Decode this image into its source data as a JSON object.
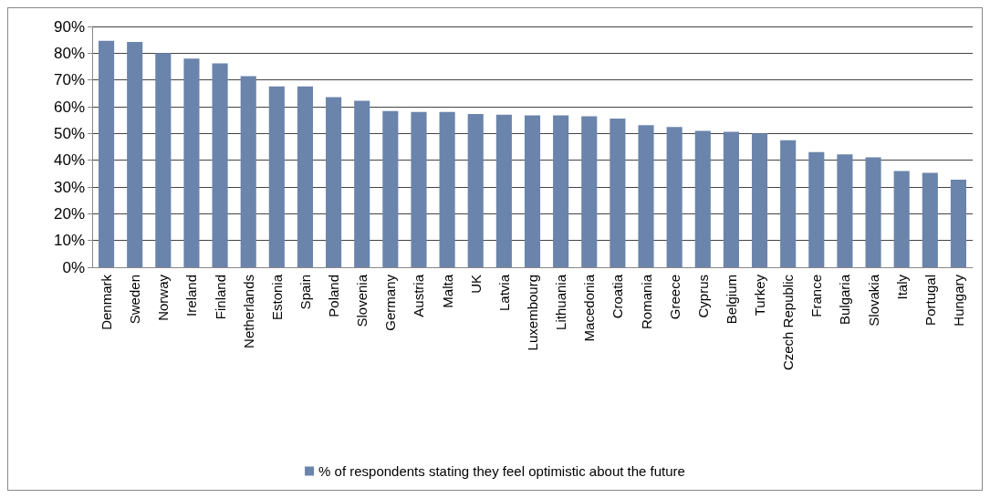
{
  "chart_data": {
    "type": "bar",
    "categories": [
      "Denmark",
      "Sweden",
      "Norway",
      "Ireland",
      "Finland",
      "Netherlands",
      "Estonia",
      "Spain",
      "Poland",
      "Slovenia",
      "Germany",
      "Austria",
      "Malta",
      "UK",
      "Latvia",
      "Luxembourg",
      "Lithuania",
      "Macedonia",
      "Croatia",
      "Romania",
      "Greece",
      "Cyprus",
      "Belgium",
      "Turkey",
      "Czech Republic",
      "France",
      "Bulgaria",
      "Slovakia",
      "Italy",
      "Portugal",
      "Hungary"
    ],
    "series": [
      {
        "name": "% of respondents stating they feel optimistic about the future",
        "color": "#6b84ab",
        "values": [
          84.6,
          84.2,
          80,
          78,
          76.2,
          71.4,
          67.6,
          67.6,
          63.6,
          62.2,
          58.4,
          58,
          58,
          57.3,
          57,
          56.8,
          56.8,
          56.4,
          55.6,
          53.1,
          52.4,
          51,
          50.6,
          50,
          47.5,
          43,
          42.2,
          41.1,
          36,
          35.3,
          32.7
        ]
      }
    ],
    "ylim": [
      0,
      90
    ],
    "yticks": [
      {
        "value": 0,
        "label": "0%"
      },
      {
        "value": 10,
        "label": "10%"
      },
      {
        "value": 20,
        "label": "20%"
      },
      {
        "value": 30,
        "label": "30%"
      },
      {
        "value": 40,
        "label": "40%"
      },
      {
        "value": 50,
        "label": "50%"
      },
      {
        "value": 60,
        "label": "60%"
      },
      {
        "value": 70,
        "label": "70%"
      },
      {
        "value": 80,
        "label": "80%"
      },
      {
        "value": 90,
        "label": "90%"
      }
    ],
    "grid": "y",
    "legend": "bottom"
  }
}
